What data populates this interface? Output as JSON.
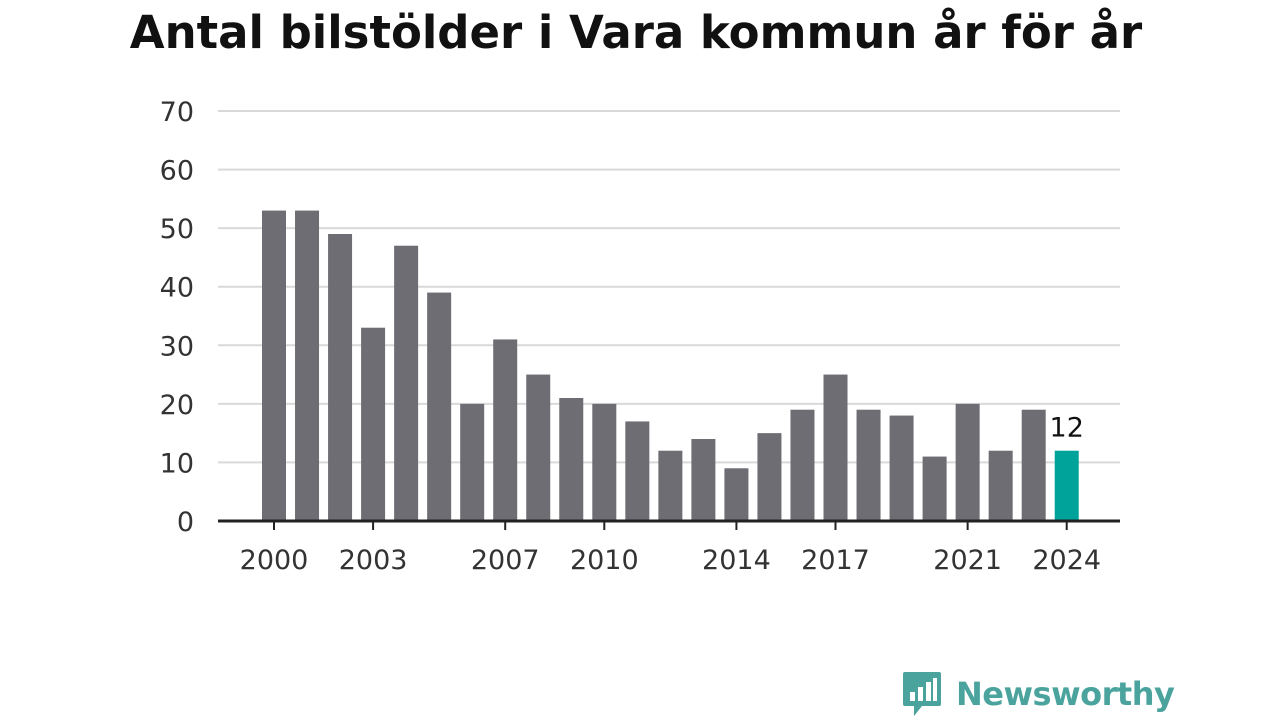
{
  "chart_data": {
    "type": "bar",
    "title": "Antal bilstölder i Vara kommun år för år",
    "xlabel": "",
    "ylabel": "",
    "categories": [
      "2000",
      "2001",
      "2002",
      "2003",
      "2004",
      "2005",
      "2006",
      "2007",
      "2008",
      "2009",
      "2010",
      "2011",
      "2012",
      "2013",
      "2014",
      "2015",
      "2016",
      "2017",
      "2018",
      "2019",
      "2020",
      "2021",
      "2022",
      "2023",
      "2024"
    ],
    "values": [
      53,
      53,
      49,
      33,
      47,
      39,
      20,
      31,
      25,
      21,
      20,
      17,
      12,
      14,
      9,
      15,
      19,
      25,
      19,
      18,
      11,
      20,
      12,
      19,
      12
    ],
    "ylim": [
      0,
      70
    ],
    "yticks": [
      0,
      10,
      20,
      30,
      40,
      50,
      60,
      70
    ],
    "xtick_labels": [
      "2000",
      "2003",
      "2007",
      "2010",
      "2014",
      "2017",
      "2021",
      "2024"
    ],
    "grid": true,
    "bar_color": "#6d6d73",
    "highlight": {
      "category": "2024",
      "color": "#00a39a",
      "label": "12"
    }
  },
  "brand": {
    "name": "Newsworthy",
    "icon": "newsworthy-logo-icon",
    "color": "#4aa39c"
  }
}
